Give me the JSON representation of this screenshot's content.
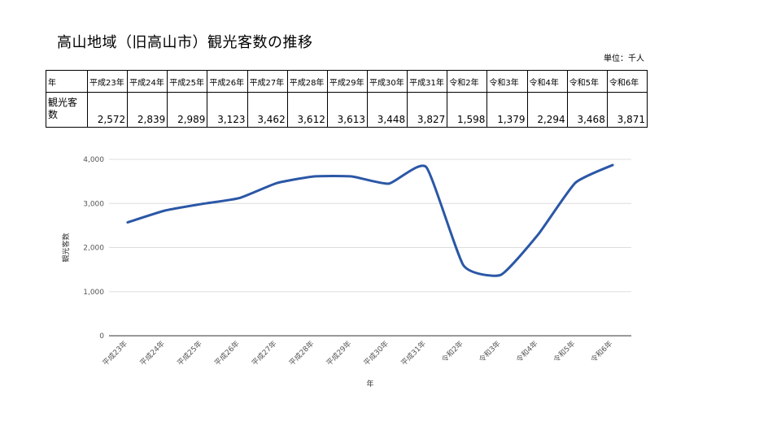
{
  "page": {
    "title": "高山地域（旧高山市）観光客数の推移",
    "unit": "単位：千人"
  },
  "table": {
    "header_label": "年",
    "row_label": "観光客数",
    "years": [
      "平成23年",
      "平成24年",
      "平成25年",
      "平成26年",
      "平成27年",
      "平成28年",
      "平成29年",
      "平成30年",
      "平成31年",
      "令和2年",
      "令和3年",
      "令和4年",
      "令和5年",
      "令和6年"
    ],
    "values": [
      "2,572",
      "2,839",
      "2,989",
      "3,123",
      "3,462",
      "3,612",
      "3,613",
      "3,448",
      "3,827",
      "1,598",
      "1,379",
      "2,294",
      "3,468",
      "3,871"
    ]
  },
  "chart_data": {
    "type": "line",
    "categories": [
      "平成23年",
      "平成24年",
      "平成25年",
      "平成26年",
      "平成27年",
      "平成28年",
      "平成29年",
      "平成30年",
      "平成31年",
      "令和2年",
      "令和3年",
      "令和4年",
      "令和5年",
      "令和6年"
    ],
    "series": [
      {
        "values": [
          2572,
          2839,
          2989,
          3123,
          3462,
          3612,
          3613,
          3448,
          3827,
          1598,
          1379,
          2294,
          3468,
          3871
        ]
      }
    ],
    "ylim": [
      0,
      4000
    ],
    "yticks": [
      "0",
      "1,000",
      "2,000",
      "3,000",
      "4,000"
    ],
    "xlabel": "年",
    "ylabel": "観光客数",
    "grid": true,
    "line_color": "#2b57a6"
  }
}
